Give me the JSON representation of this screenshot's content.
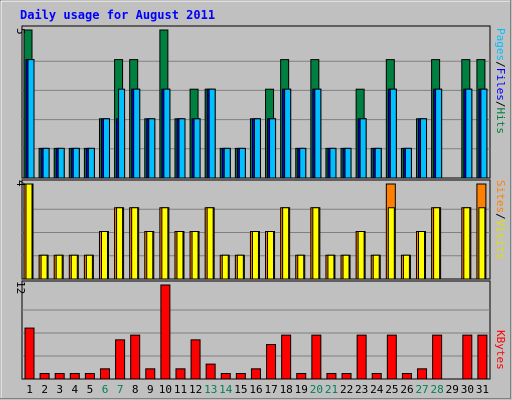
{
  "chart_data": {
    "type": "bar",
    "title": "Daily usage for August 2011",
    "days": [
      "1",
      "2",
      "3",
      "4",
      "5",
      "6",
      "7",
      "8",
      "9",
      "10",
      "11",
      "12",
      "13",
      "14",
      "15",
      "16",
      "17",
      "18",
      "19",
      "20",
      "21",
      "22",
      "23",
      "24",
      "25",
      "26",
      "27",
      "28",
      "29",
      "30",
      "31"
    ],
    "weekend_days": [
      "6",
      "7",
      "13",
      "14",
      "20",
      "21",
      "27",
      "28"
    ],
    "series": [
      {
        "name": "Hits",
        "panel": "top",
        "color": "#008040",
        "values": [
          5,
          1,
          1,
          1,
          1,
          2,
          4,
          4,
          2,
          5,
          2,
          3,
          3,
          1,
          1,
          2,
          3,
          4,
          1,
          4,
          1,
          1,
          3,
          1,
          4,
          1,
          2,
          4,
          0,
          4,
          4
        ]
      },
      {
        "name": "Files",
        "panel": "top",
        "color": "#0000ff",
        "values": [
          4,
          1,
          1,
          1,
          1,
          2,
          2,
          3,
          2,
          3,
          2,
          2,
          3,
          1,
          1,
          2,
          2,
          3,
          1,
          3,
          1,
          1,
          2,
          1,
          3,
          1,
          2,
          3,
          0,
          3,
          3
        ]
      },
      {
        "name": "Pages",
        "panel": "top",
        "color": "#00c0ff",
        "values": [
          4,
          1,
          1,
          1,
          1,
          2,
          3,
          3,
          2,
          3,
          2,
          2,
          3,
          1,
          1,
          2,
          2,
          3,
          1,
          3,
          1,
          1,
          2,
          1,
          3,
          1,
          2,
          3,
          0,
          3,
          3
        ]
      },
      {
        "name": "Visits",
        "panel": "middle",
        "color": "#ffff00",
        "values": [
          4,
          1,
          1,
          1,
          1,
          2,
          3,
          3,
          2,
          3,
          2,
          2,
          3,
          1,
          1,
          2,
          2,
          3,
          1,
          3,
          1,
          1,
          2,
          1,
          3,
          1,
          2,
          3,
          0,
          3,
          3
        ]
      },
      {
        "name": "Sites",
        "panel": "middle",
        "color": "#ff8000",
        "values": [
          4,
          1,
          1,
          1,
          1,
          2,
          3,
          3,
          2,
          3,
          2,
          2,
          3,
          1,
          1,
          2,
          2,
          3,
          1,
          3,
          1,
          1,
          2,
          1,
          4,
          1,
          2,
          3,
          0,
          3,
          4
        ]
      },
      {
        "name": "KBytes",
        "panel": "bottom",
        "color": "#ff0000",
        "values": [
          6.5,
          0.7,
          0.7,
          0.7,
          0.7,
          1.3,
          5.0,
          5.6,
          1.3,
          12,
          1.3,
          5.0,
          1.9,
          0.7,
          0.7,
          1.3,
          4.4,
          5.6,
          0.7,
          5.6,
          0.7,
          0.7,
          5.6,
          0.7,
          5.6,
          0.7,
          1.3,
          5.6,
          0,
          5.6,
          5.6
        ]
      }
    ],
    "panels": {
      "top": {
        "max_label": "5",
        "ymax": 5,
        "legend": [
          "Pages",
          "/",
          "Files",
          "/",
          "Hits"
        ]
      },
      "middle": {
        "max_label": "4",
        "ymax": 4,
        "legend": [
          "Sites",
          "/",
          "Visits"
        ]
      },
      "bottom": {
        "max_label": "12",
        "ymax": 12,
        "legend": [
          "KBytes"
        ]
      }
    },
    "grid": true
  },
  "colors": {
    "background": "#c0c0c0",
    "title": "#0000ff",
    "weekend_label": "#00805c",
    "weekday_label": "#000000",
    "slash": "#000000"
  }
}
